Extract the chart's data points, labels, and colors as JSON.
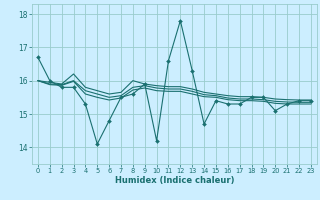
{
  "title": "",
  "xlabel": "Humidex (Indice chaleur)",
  "bg_color": "#cceeff",
  "grid_color": "#99cccc",
  "line_color": "#1a7070",
  "marker_color": "#1a7070",
  "xlim": [
    -0.5,
    23.5
  ],
  "ylim": [
    13.5,
    18.3
  ],
  "yticks": [
    14,
    15,
    16,
    17,
    18
  ],
  "xticks": [
    0,
    1,
    2,
    3,
    4,
    5,
    6,
    7,
    8,
    9,
    10,
    11,
    12,
    13,
    14,
    15,
    16,
    17,
    18,
    19,
    20,
    21,
    22,
    23
  ],
  "xtick_labels": [
    "0",
    "1",
    "2",
    "3",
    "4",
    "5",
    "6",
    "7",
    "8",
    "9",
    "10",
    "11",
    "12",
    "13",
    "14",
    "15",
    "16",
    "17",
    "18",
    "19",
    "20",
    "21",
    "22",
    "23"
  ],
  "series": [
    [
      16.7,
      16.0,
      15.8,
      15.8,
      15.3,
      14.1,
      14.8,
      15.5,
      15.6,
      15.9,
      14.2,
      16.6,
      17.8,
      16.3,
      14.7,
      15.4,
      15.3,
      15.3,
      15.5,
      15.5,
      15.1,
      15.3,
      15.4,
      15.4
    ],
    [
      16.0,
      15.95,
      15.9,
      16.2,
      15.8,
      15.7,
      15.6,
      15.65,
      16.0,
      15.9,
      15.85,
      15.82,
      15.82,
      15.75,
      15.65,
      15.6,
      15.55,
      15.52,
      15.52,
      15.5,
      15.45,
      15.43,
      15.42,
      15.42
    ],
    [
      16.0,
      15.9,
      15.88,
      16.0,
      15.7,
      15.6,
      15.5,
      15.55,
      15.8,
      15.85,
      15.78,
      15.75,
      15.75,
      15.68,
      15.58,
      15.55,
      15.48,
      15.45,
      15.45,
      15.43,
      15.38,
      15.36,
      15.35,
      15.35
    ],
    [
      16.0,
      15.88,
      15.86,
      15.98,
      15.6,
      15.5,
      15.42,
      15.48,
      15.72,
      15.78,
      15.7,
      15.68,
      15.68,
      15.6,
      15.52,
      15.5,
      15.43,
      15.4,
      15.4,
      15.38,
      15.32,
      15.3,
      15.3,
      15.3
    ]
  ]
}
